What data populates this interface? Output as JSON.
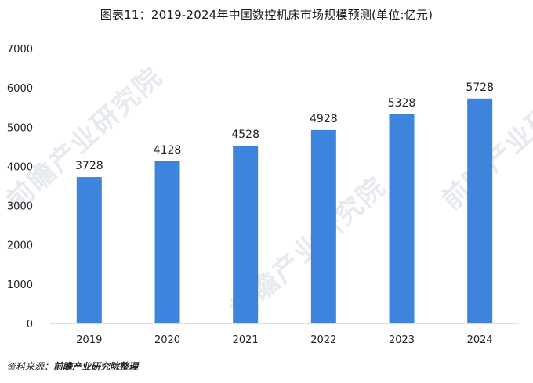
{
  "title": "图表11：2019-2024年中国数控机床市场规模预测(单位:亿元)",
  "source_label": "资料来源：",
  "source_text": "前瞻产业研究院整理",
  "watermark": "前瞻产业研究院",
  "colors": {
    "bar": "#3f84dc",
    "axis": "#bfbfbf",
    "text": "#222222"
  },
  "chart_data": {
    "type": "bar",
    "categories": [
      "2019",
      "2020",
      "2021",
      "2022",
      "2023",
      "2024"
    ],
    "values": [
      3728,
      4128,
      4528,
      4928,
      5328,
      5728
    ],
    "ylim": [
      0,
      7000
    ],
    "yticks": [
      0,
      1000,
      2000,
      3000,
      4000,
      5000,
      6000,
      7000
    ],
    "grid": false,
    "data_labels": true,
    "xlabel": "",
    "ylabel": ""
  }
}
